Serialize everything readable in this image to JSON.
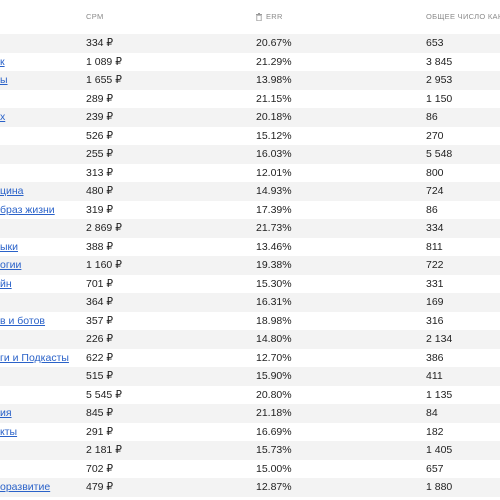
{
  "header": {
    "cpm": "CPM",
    "err": "ERR",
    "total": "ОБЩЕЕ ЧИСЛО КАНАЛ"
  },
  "rows": [
    {
      "name": "",
      "cpm": "334 ₽",
      "err": "20.67%",
      "total": "653"
    },
    {
      "name": "к",
      "cpm": "1 089 ₽",
      "err": "21.29%",
      "total": "3 845"
    },
    {
      "name": "ы",
      "cpm": "1 655 ₽",
      "err": "13.98%",
      "total": "2 953"
    },
    {
      "name": "",
      "cpm": "289 ₽",
      "err": "21.15%",
      "total": "1 150"
    },
    {
      "name": "х",
      "cpm": "239 ₽",
      "err": "20.18%",
      "total": "86"
    },
    {
      "name": "",
      "cpm": "526 ₽",
      "err": "15.12%",
      "total": "270"
    },
    {
      "name": "",
      "cpm": "255 ₽",
      "err": "16.03%",
      "total": "5 548"
    },
    {
      "name": "",
      "cpm": "313 ₽",
      "err": "12.01%",
      "total": "800"
    },
    {
      "name": "цина",
      "cpm": "480 ₽",
      "err": "14.93%",
      "total": "724"
    },
    {
      "name": "браз жизни",
      "cpm": "319 ₽",
      "err": "17.39%",
      "total": "86"
    },
    {
      "name": "",
      "cpm": "2 869 ₽",
      "err": "21.73%",
      "total": "334"
    },
    {
      "name": "ыки",
      "cpm": "388 ₽",
      "err": "13.46%",
      "total": "811"
    },
    {
      "name": "огии",
      "cpm": "1 160 ₽",
      "err": "19.38%",
      "total": "722"
    },
    {
      "name": "йн",
      "cpm": "701 ₽",
      "err": "15.30%",
      "total": "331"
    },
    {
      "name": "",
      "cpm": "364 ₽",
      "err": "16.31%",
      "total": "169"
    },
    {
      "name": "в и ботов",
      "cpm": "357 ₽",
      "err": "18.98%",
      "total": "316"
    },
    {
      "name": "",
      "cpm": "226 ₽",
      "err": "14.80%",
      "total": "2 134"
    },
    {
      "name": "ги и Подкасты",
      "cpm": "622 ₽",
      "err": "12.70%",
      "total": "386"
    },
    {
      "name": "",
      "cpm": "515 ₽",
      "err": "15.90%",
      "total": "411"
    },
    {
      "name": "",
      "cpm": "5 545 ₽",
      "err": "20.80%",
      "total": "1 135"
    },
    {
      "name": "ия",
      "cpm": "845 ₽",
      "err": "21.18%",
      "total": "84"
    },
    {
      "name": "кты",
      "cpm": "291 ₽",
      "err": "16.69%",
      "total": "182"
    },
    {
      "name": "",
      "cpm": "2 181 ₽",
      "err": "15.73%",
      "total": "1 405"
    },
    {
      "name": "",
      "cpm": "702 ₽",
      "err": "15.00%",
      "total": "657"
    },
    {
      "name": "оразвитие",
      "cpm": "479 ₽",
      "err": "12.87%",
      "total": "1 880"
    }
  ]
}
